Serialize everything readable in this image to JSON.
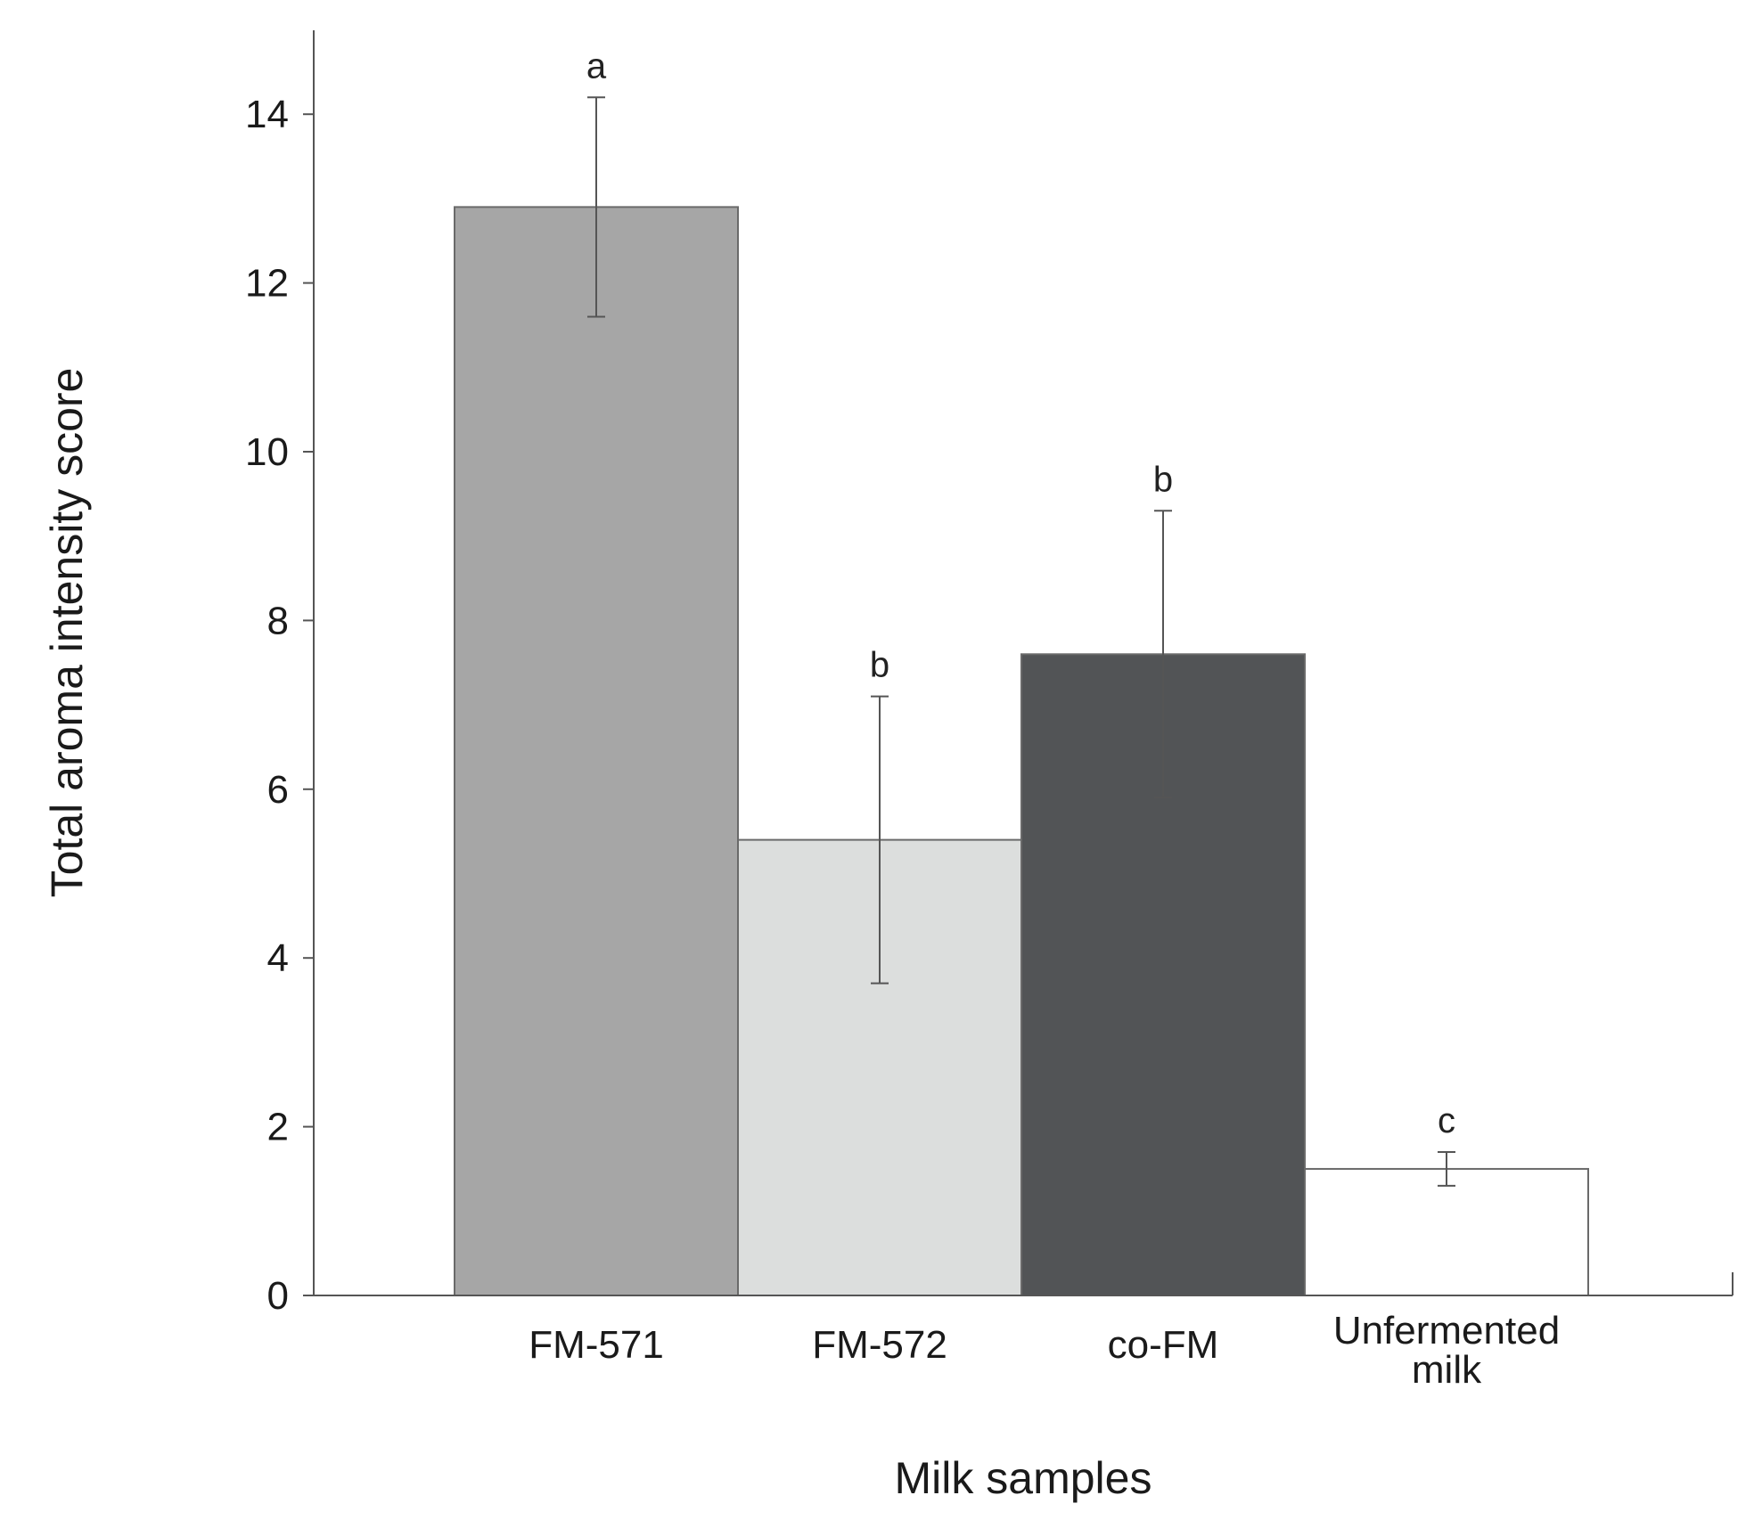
{
  "chart_data": {
    "type": "bar",
    "categories": [
      [
        "FM-571"
      ],
      [
        "FM-572"
      ],
      [
        "co-FM"
      ],
      [
        "Unfermented",
        "milk"
      ]
    ],
    "values": [
      12.9,
      5.4,
      7.6,
      1.5
    ],
    "error_lower": [
      11.6,
      3.7,
      5.9,
      1.3
    ],
    "error_upper": [
      14.2,
      7.1,
      9.3,
      1.7
    ],
    "significance_labels": [
      "a",
      "b",
      "b",
      "c"
    ],
    "bar_colors": [
      "#a6a6a6",
      "#dcdedd",
      "#525456",
      "#ffffff"
    ],
    "yticks": [
      0,
      2,
      4,
      6,
      8,
      10,
      12,
      14
    ],
    "ylim": [
      0,
      15
    ],
    "xlabel": "Milk samples",
    "ylabel": "Total aroma intensity score",
    "grid": false
  }
}
